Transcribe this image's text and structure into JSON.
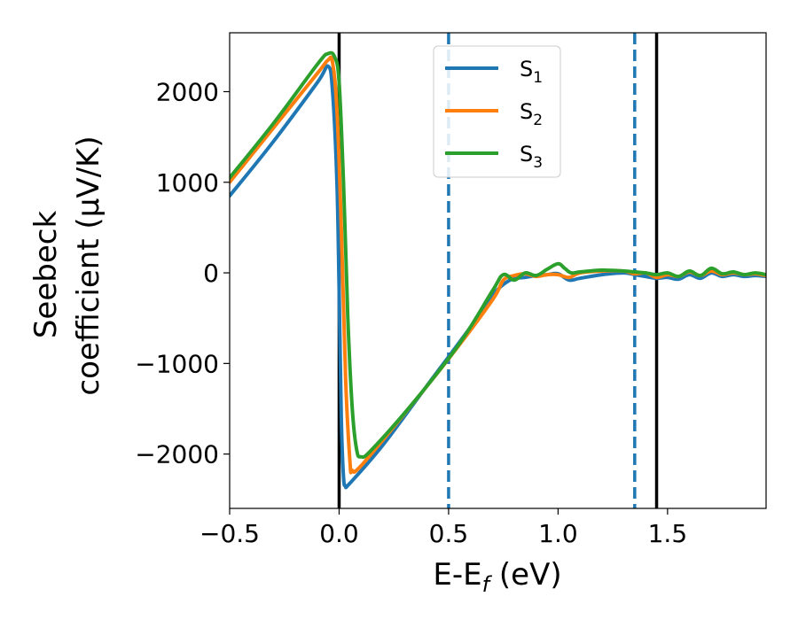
{
  "chart_data": {
    "type": "line",
    "xlabel_main": "E-E",
    "xlabel_sub": "f",
    "xlabel_unit": " (eV)",
    "ylabel_line1": "Seebeck",
    "ylabel_line2": "coefficient  (μV/K)",
    "xlim": [
      -0.5,
      1.95
    ],
    "ylim": [
      -2600,
      2650
    ],
    "x_ticks": [
      -0.5,
      0.0,
      0.5,
      1.0,
      1.5
    ],
    "x_tick_labels": [
      "−0.5",
      "0.0",
      "0.5",
      "1.0",
      "1.5"
    ],
    "y_ticks": [
      -2000,
      -1000,
      0,
      1000,
      2000
    ],
    "y_tick_labels": [
      "−2000",
      "−1000",
      "0",
      "1000",
      "2000"
    ],
    "grid": false,
    "legend_position": "top-center",
    "vlines": [
      {
        "x": 0.0,
        "style": "solid",
        "color": "#000000"
      },
      {
        "x": 1.45,
        "style": "solid",
        "color": "#000000"
      },
      {
        "x": 0.5,
        "style": "dashed",
        "color": "#1f77b4"
      },
      {
        "x": 1.35,
        "style": "dashed",
        "color": "#1f77b4"
      }
    ],
    "series": [
      {
        "name": "S",
        "sub": "1",
        "color": "#1f77b4",
        "points": [
          [
            -0.5,
            850
          ],
          [
            -0.3,
            1450
          ],
          [
            -0.1,
            2100
          ],
          [
            -0.05,
            2280
          ],
          [
            -0.03,
            2000
          ],
          [
            -0.01,
            1000
          ],
          [
            0.0,
            -200
          ],
          [
            0.01,
            -1600
          ],
          [
            0.02,
            -2250
          ],
          [
            0.03,
            -2350
          ],
          [
            0.05,
            -2320
          ],
          [
            0.2,
            -1900
          ],
          [
            0.4,
            -1250
          ],
          [
            0.6,
            -600
          ],
          [
            0.7,
            -250
          ],
          [
            0.78,
            -80
          ],
          [
            0.85,
            -50
          ],
          [
            0.9,
            -30
          ],
          [
            0.95,
            -20
          ],
          [
            1.0,
            -10
          ],
          [
            1.05,
            -80
          ],
          [
            1.1,
            -60
          ],
          [
            1.2,
            -20
          ],
          [
            1.3,
            0
          ],
          [
            1.35,
            -20
          ],
          [
            1.4,
            -40
          ],
          [
            1.45,
            -60
          ],
          [
            1.5,
            -50
          ],
          [
            1.55,
            -70
          ],
          [
            1.6,
            -20
          ],
          [
            1.65,
            -60
          ],
          [
            1.7,
            0
          ],
          [
            1.75,
            -40
          ],
          [
            1.8,
            -20
          ],
          [
            1.85,
            -40
          ],
          [
            1.9,
            -30
          ],
          [
            1.95,
            -40
          ]
        ]
      },
      {
        "name": "S",
        "sub": "2",
        "color": "#ff7f0e",
        "points": [
          [
            -0.5,
            1000
          ],
          [
            -0.3,
            1600
          ],
          [
            -0.1,
            2200
          ],
          [
            -0.05,
            2350
          ],
          [
            -0.03,
            2320
          ],
          [
            -0.01,
            1800
          ],
          [
            0.01,
            500
          ],
          [
            0.03,
            -1200
          ],
          [
            0.05,
            -2100
          ],
          [
            0.06,
            -2180
          ],
          [
            0.1,
            -2130
          ],
          [
            0.3,
            -1550
          ],
          [
            0.5,
            -950
          ],
          [
            0.7,
            -300
          ],
          [
            0.75,
            -80
          ],
          [
            0.8,
            -30
          ],
          [
            0.85,
            -10
          ],
          [
            0.9,
            -40
          ],
          [
            0.95,
            -20
          ],
          [
            1.0,
            -20
          ],
          [
            1.05,
            -50
          ],
          [
            1.1,
            0
          ],
          [
            1.2,
            20
          ],
          [
            1.3,
            20
          ],
          [
            1.35,
            -10
          ],
          [
            1.4,
            0
          ],
          [
            1.45,
            -50
          ],
          [
            1.5,
            -20
          ],
          [
            1.55,
            -40
          ],
          [
            1.6,
            10
          ],
          [
            1.65,
            -30
          ],
          [
            1.7,
            20
          ],
          [
            1.75,
            -20
          ],
          [
            1.8,
            0
          ],
          [
            1.85,
            -20
          ],
          [
            1.9,
            -10
          ],
          [
            1.95,
            -30
          ]
        ]
      },
      {
        "name": "S",
        "sub": "3",
        "color": "#2ca02c",
        "points": [
          [
            -0.5,
            1050
          ],
          [
            -0.3,
            1650
          ],
          [
            -0.1,
            2300
          ],
          [
            -0.05,
            2420
          ],
          [
            -0.02,
            2380
          ],
          [
            0.0,
            2100
          ],
          [
            0.02,
            1000
          ],
          [
            0.04,
            -500
          ],
          [
            0.06,
            -1500
          ],
          [
            0.08,
            -1950
          ],
          [
            0.1,
            -2030
          ],
          [
            0.15,
            -1950
          ],
          [
            0.35,
            -1400
          ],
          [
            0.55,
            -780
          ],
          [
            0.7,
            -200
          ],
          [
            0.75,
            -20
          ],
          [
            0.8,
            -80
          ],
          [
            0.85,
            0
          ],
          [
            0.9,
            -30
          ],
          [
            0.95,
            40
          ],
          [
            1.0,
            100
          ],
          [
            1.03,
            50
          ],
          [
            1.06,
            0
          ],
          [
            1.1,
            10
          ],
          [
            1.2,
            30
          ],
          [
            1.3,
            20
          ],
          [
            1.35,
            10
          ],
          [
            1.4,
            0
          ],
          [
            1.45,
            -20
          ],
          [
            1.5,
            0
          ],
          [
            1.55,
            -40
          ],
          [
            1.6,
            20
          ],
          [
            1.65,
            -30
          ],
          [
            1.7,
            50
          ],
          [
            1.75,
            -10
          ],
          [
            1.8,
            10
          ],
          [
            1.85,
            -20
          ],
          [
            1.9,
            0
          ],
          [
            1.95,
            -20
          ]
        ]
      }
    ]
  }
}
